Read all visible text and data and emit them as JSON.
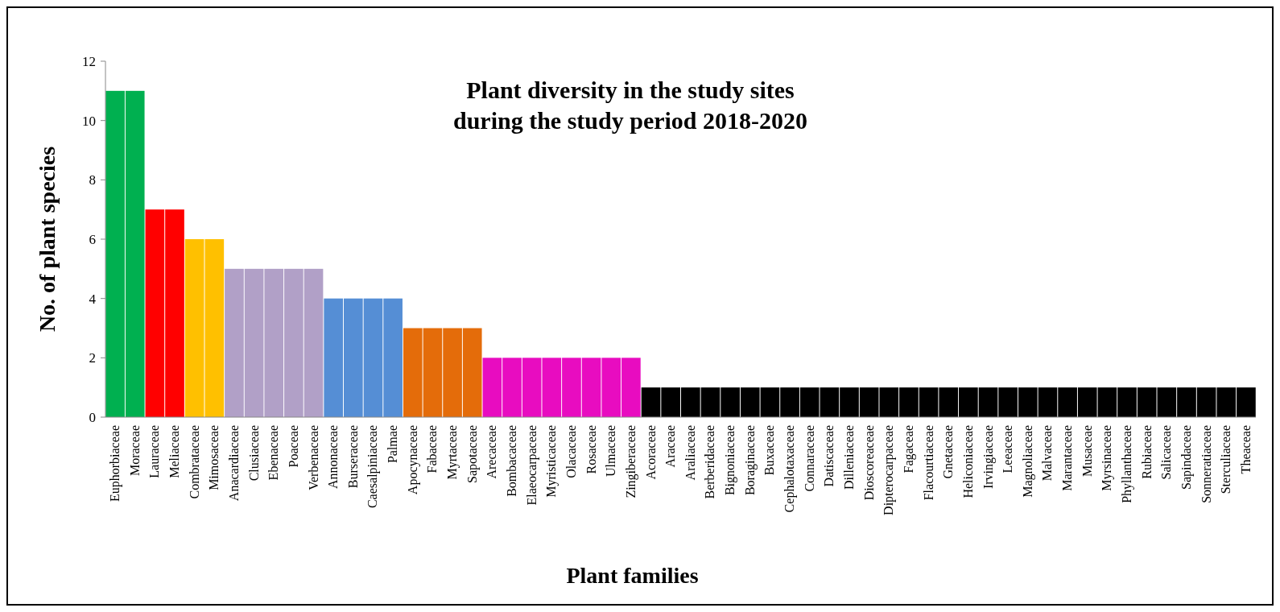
{
  "chart_data": {
    "type": "bar",
    "title": "Plant diversity in the study sites\nduring the study period 2018-2020",
    "xlabel": "Plant families",
    "ylabel": "No. of plant species",
    "categories": [
      "Euphorbiaceae",
      "Moraceae",
      "Lauraceae",
      "Meliaceae",
      "Combrataceae",
      "Mimosaceae",
      "Anacardiaceae",
      "Clusiaceae",
      "Ebenaceae",
      "Poaceae",
      "Verbenaceae",
      "Annonaceae",
      "Burseraceae",
      "Caesalpiniaceae",
      "Palmae",
      "Apocynaceae",
      "Fabaceae",
      "Myrtaceae",
      "Sapotaceae",
      "Arecaceae",
      "Bombacaceae",
      "Elaeocarpaceae",
      "Myristicaceae",
      "Olacaceae",
      "Rosaceae",
      "Ulmaceae",
      "Zingiberaceae",
      "Acoraceae",
      "Araceae",
      "Araliaceae",
      "Berberidaceae",
      "Bignoniaceae",
      "Boraginaceae",
      "Buxaceae",
      "Cephalotaxaceae",
      "Connaraceae",
      "Datiscaceae",
      "Dilleniaceae",
      "Dioscoreaceae",
      "Dipterocarpaceae",
      "Fagaceae",
      "Flacourtiaceae",
      "Gnetaceae",
      "Heliconiaceae",
      "Irvingiaceae",
      "Leeaceae",
      "Magnoliaceae",
      "Malvaceae",
      "Marantaceae",
      "Musaceae",
      "Myrsinaceae",
      "Phyllanthaceae",
      "Rubiaceae",
      "Salicaceae",
      "Sapindaceae",
      "Sonneratiaceae",
      "Sterculiaceae",
      "Theaceae"
    ],
    "values": [
      11,
      11,
      7,
      7,
      6,
      6,
      5,
      5,
      5,
      5,
      5,
      4,
      4,
      4,
      4,
      3,
      3,
      3,
      3,
      2,
      2,
      2,
      2,
      2,
      2,
      2,
      2,
      1,
      1,
      1,
      1,
      1,
      1,
      1,
      1,
      1,
      1,
      1,
      1,
      1,
      1,
      1,
      1,
      1,
      1,
      1,
      1,
      1,
      1,
      1,
      1,
      1,
      1,
      1,
      1,
      1,
      1,
      1
    ],
    "colors": [
      "#00b050",
      "#00b050",
      "#ff0000",
      "#ff0000",
      "#ffc000",
      "#ffc000",
      "#b1a0c7",
      "#b1a0c7",
      "#b1a0c7",
      "#b1a0c7",
      "#b1a0c7",
      "#558ed5",
      "#558ed5",
      "#558ed5",
      "#558ed5",
      "#e46c0a",
      "#e46c0a",
      "#e46c0a",
      "#e46c0a",
      "#e80cc0",
      "#e80cc0",
      "#e80cc0",
      "#e80cc0",
      "#e80cc0",
      "#e80cc0",
      "#e80cc0",
      "#e80cc0",
      "#000000",
      "#000000",
      "#000000",
      "#000000",
      "#000000",
      "#000000",
      "#000000",
      "#000000",
      "#000000",
      "#000000",
      "#000000",
      "#000000",
      "#000000",
      "#000000",
      "#000000",
      "#000000",
      "#000000",
      "#000000",
      "#000000",
      "#000000",
      "#000000",
      "#000000",
      "#000000",
      "#000000",
      "#000000",
      "#000000",
      "#000000",
      "#000000",
      "#000000",
      "#000000",
      "#000000"
    ],
    "ylim": [
      0,
      12
    ],
    "yticks": [
      0,
      2,
      4,
      6,
      8,
      10,
      12
    ],
    "grid": false
  }
}
